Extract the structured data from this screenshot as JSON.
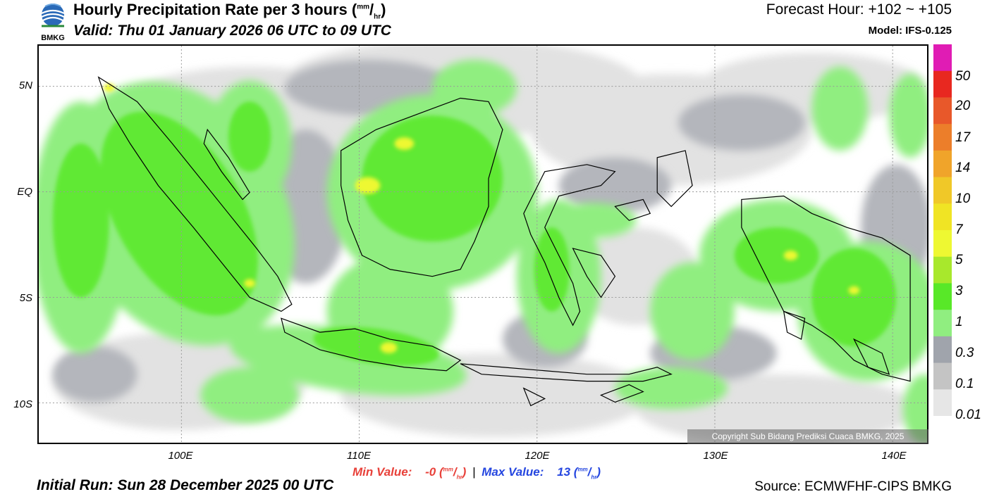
{
  "header": {
    "logo_text": "BMKG",
    "title": "Hourly Precipitation Rate per 3 hours",
    "unit_num": "mm",
    "unit_sep": "/",
    "unit_den": "hr",
    "valid_time": "Valid: Thu 01 January 2026 06 UTC to 09 UTC",
    "forecast_hour": "Forecast Hour: +102 ~ +105",
    "model": "Model: IFS-0.125"
  },
  "map": {
    "y_ticks": [
      "5N",
      "EQ",
      "5S",
      "10S"
    ],
    "x_ticks": [
      "100E",
      "110E",
      "120E",
      "130E",
      "140E"
    ],
    "copyright": "Copyright Sub Bidang Prediksi Cuaca BMKG, 2025"
  },
  "stats": {
    "min_label": "Min Value:",
    "min_value": "-0",
    "separator": "|",
    "max_label": "Max Value:",
    "max_value": "13",
    "unit_num": "mm",
    "unit_sep": "/",
    "unit_den": "hr"
  },
  "footer": {
    "initial_run": "Initial Run: Sun 28 December 2025 00 UTC",
    "source": "Source: ECMWFHF-CIPS BMKG"
  },
  "colorbar": {
    "labels": [
      "50",
      "20",
      "17",
      "14",
      "10",
      "7",
      "5",
      "3",
      "1",
      "0.3",
      "0.1",
      "0.01"
    ],
    "colors": [
      "#e01cb4",
      "#e82820",
      "#e8582a",
      "#ec7e2a",
      "#f0a42a",
      "#f0c828",
      "#f0e424",
      "#eef832",
      "#a8e82c",
      "#58e828",
      "#90ee80",
      "#a0a4ac",
      "#c4c4c4",
      "#e6e6e6"
    ]
  }
}
